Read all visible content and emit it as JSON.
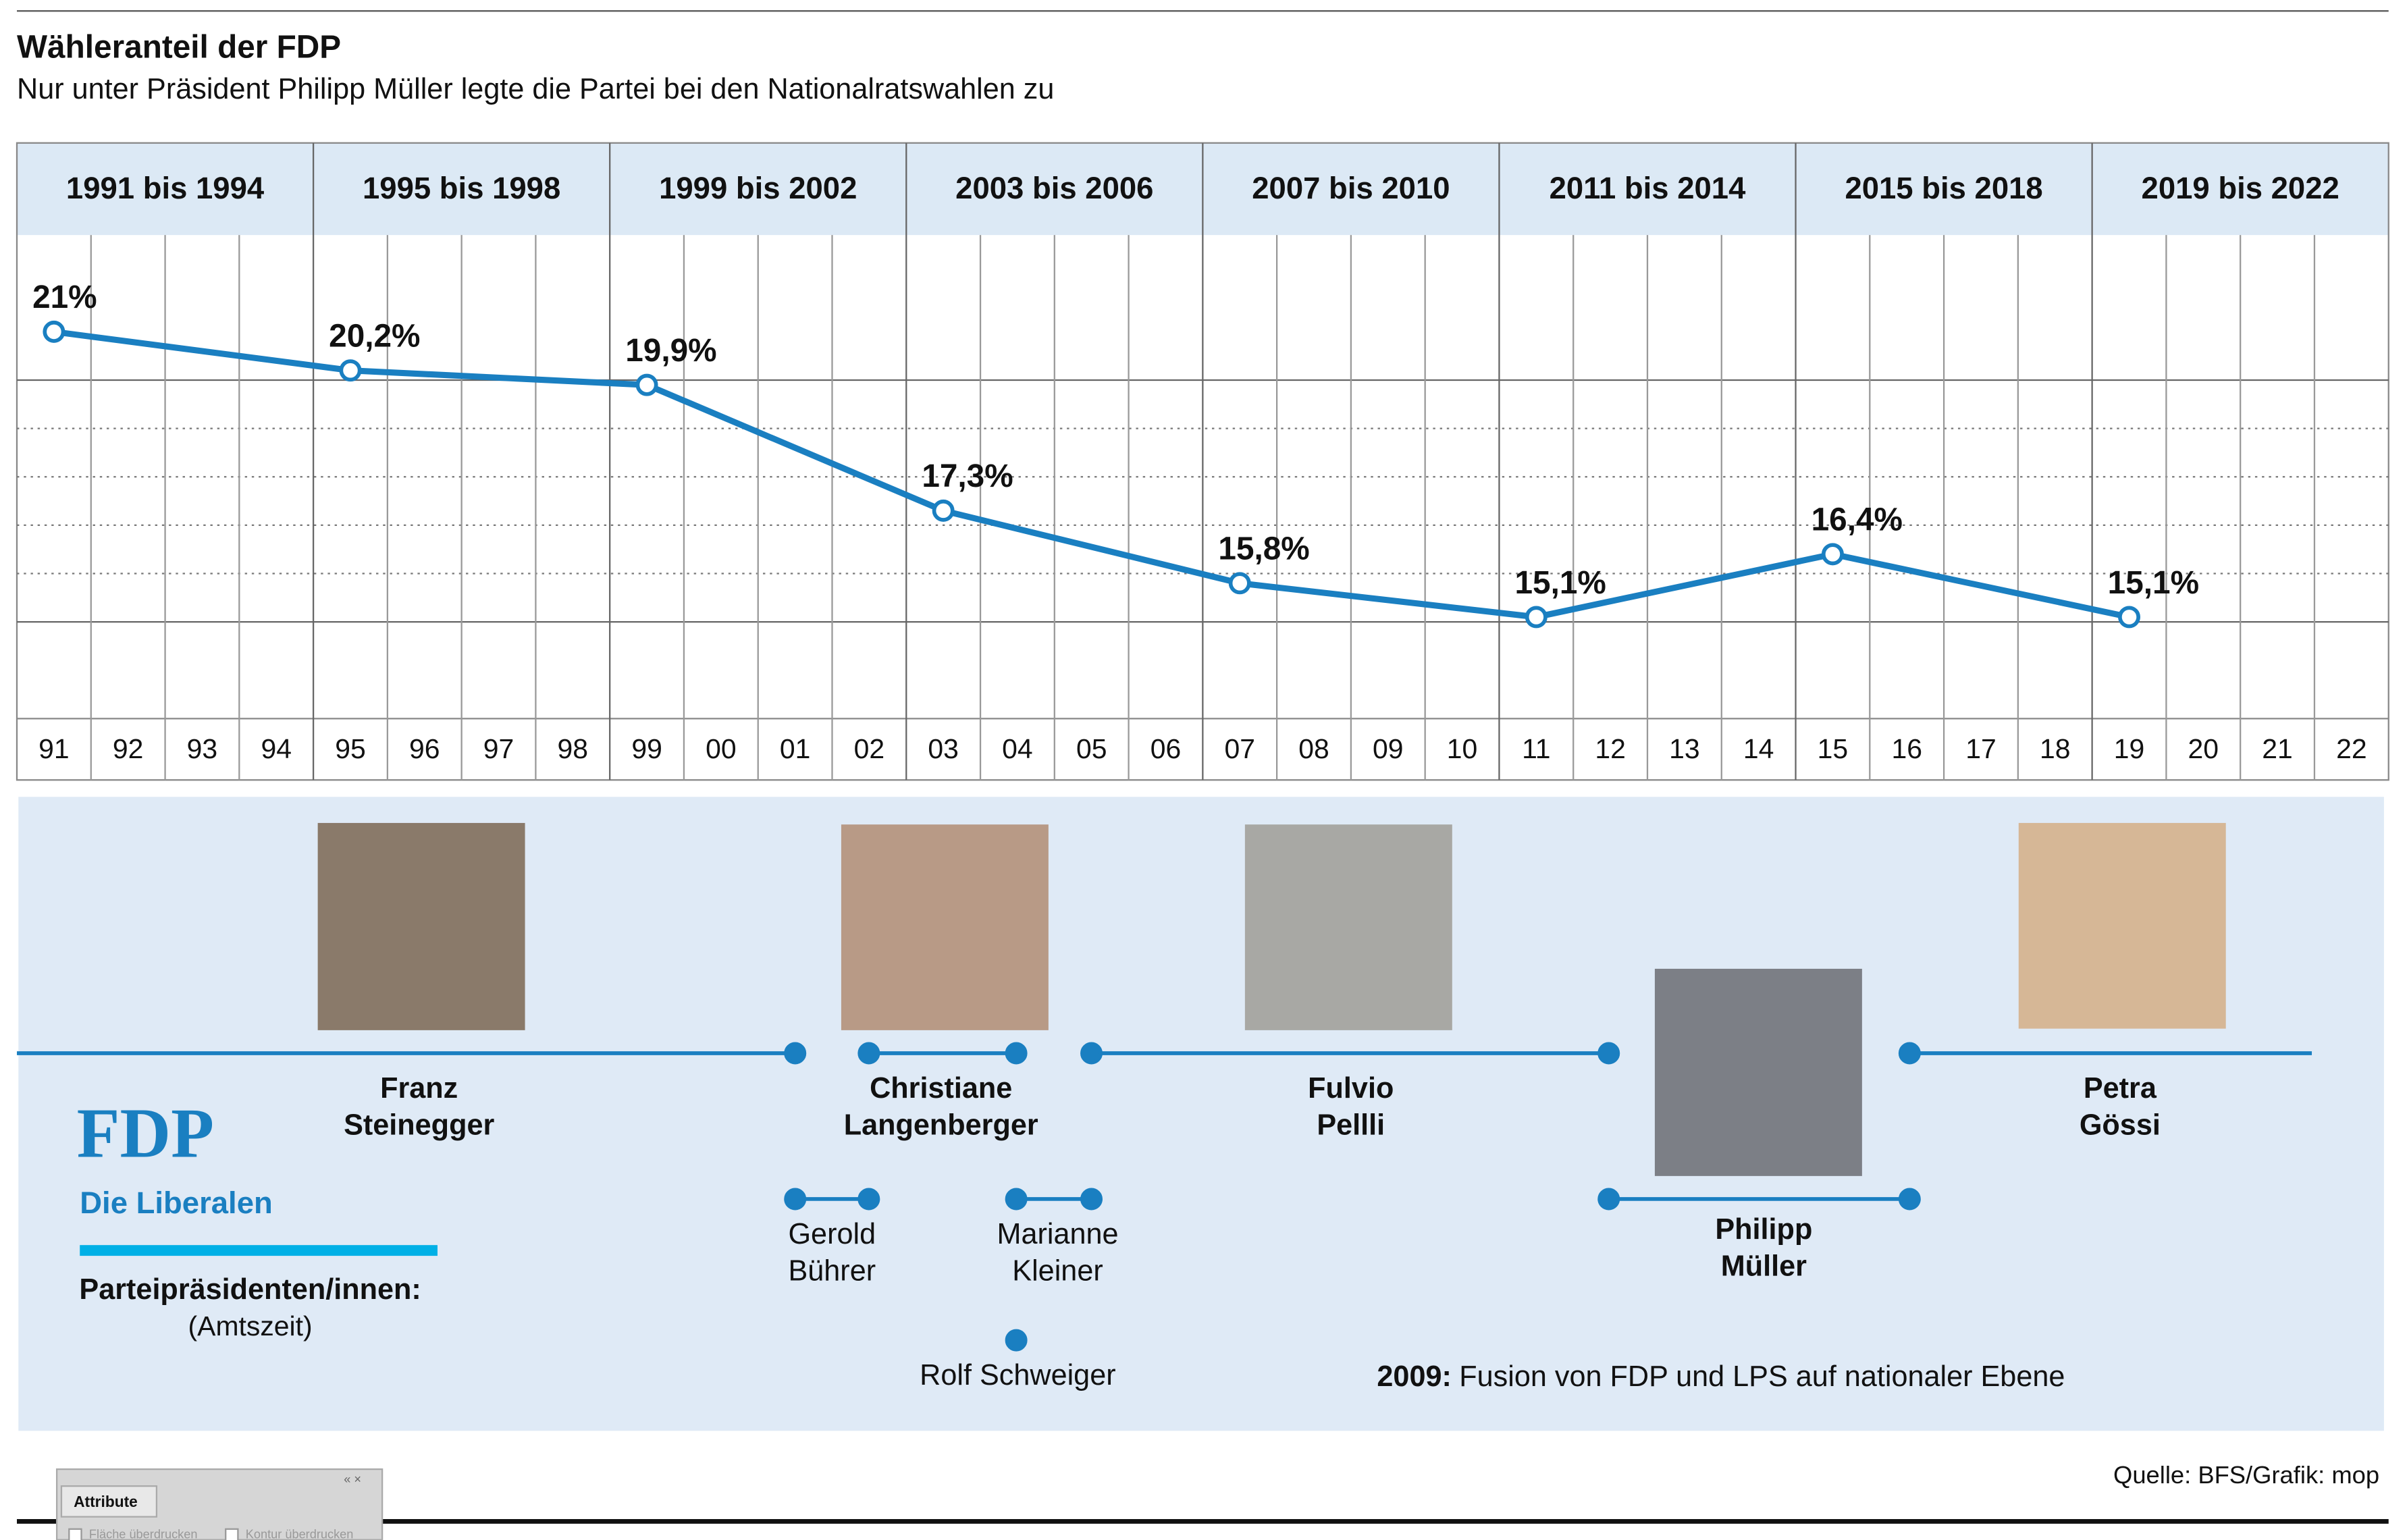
{
  "header": {
    "title": "Wähleranteil der FDP",
    "subtitle": "Nur unter Präsident Philipp Müller legte die Partei bei den Nationalratswahlen zu"
  },
  "chart_data": {
    "type": "line",
    "periods": [
      "1991 bis 1994",
      "1995 bis 1998",
      "1999 bis 2002",
      "2003 bis 2006",
      "2007 bis 2010",
      "2011 bis 2014",
      "2015 bis 2018",
      "2019 bis 2022"
    ],
    "x": [
      1991,
      1995,
      1999,
      2003,
      2007,
      2011,
      2015,
      2019
    ],
    "values": [
      21,
      20.2,
      19.9,
      17.3,
      15.8,
      15.1,
      16.4,
      15.1
    ],
    "value_labels": [
      "21%",
      "20,2%",
      "19,9%",
      "17,3%",
      "15,8%",
      "15,1%",
      "16,4%",
      "15,1%"
    ],
    "color": "#1a7fc1",
    "xlim": [
      1990.5,
      2022.5
    ],
    "xticks": [
      {
        "value": 1991,
        "label": "91"
      },
      {
        "value": 1992,
        "label": "92"
      },
      {
        "value": 1993,
        "label": "93"
      },
      {
        "value": 1994,
        "label": "94"
      },
      {
        "value": 1995,
        "label": "95"
      },
      {
        "value": 1996,
        "label": "96"
      },
      {
        "value": 1997,
        "label": "97"
      },
      {
        "value": 1998,
        "label": "98"
      },
      {
        "value": 1999,
        "label": "99"
      },
      {
        "value": 2000,
        "label": "00"
      },
      {
        "value": 2001,
        "label": "01"
      },
      {
        "value": 2002,
        "label": "02"
      },
      {
        "value": 2003,
        "label": "03"
      },
      {
        "value": 2004,
        "label": "04"
      },
      {
        "value": 2005,
        "label": "05"
      },
      {
        "value": 2006,
        "label": "06"
      },
      {
        "value": 2007,
        "label": "07"
      },
      {
        "value": 2008,
        "label": "08"
      },
      {
        "value": 2009,
        "label": "09"
      },
      {
        "value": 2010,
        "label": "10"
      },
      {
        "value": 2011,
        "label": "11"
      },
      {
        "value": 2012,
        "label": "12"
      },
      {
        "value": 2013,
        "label": "13"
      },
      {
        "value": 2014,
        "label": "14"
      },
      {
        "value": 2015,
        "label": "15"
      },
      {
        "value": 2016,
        "label": "16"
      },
      {
        "value": 2017,
        "label": "17"
      },
      {
        "value": 2018,
        "label": "18"
      },
      {
        "value": 2019,
        "label": "19"
      },
      {
        "value": 2020,
        "label": "20"
      },
      {
        "value": 2021,
        "label": "21"
      },
      {
        "value": 2022,
        "label": "22"
      }
    ],
    "ylim": [
      13,
      23
    ],
    "yticks": [
      15,
      16,
      17,
      18,
      19,
      20
    ],
    "grid": true
  },
  "logo": {
    "name": "FDP",
    "tagline": "Die Liberalen"
  },
  "legend": {
    "heading": "Parteipräsidenten/innen:",
    "sub": "(Amtszeit)"
  },
  "presidents": [
    {
      "lines": [
        "Franz",
        "Steinegger"
      ]
    },
    {
      "lines": [
        "Christiane",
        "Langenberger"
      ]
    },
    {
      "lines": [
        "Fulvio",
        "Pellli"
      ]
    },
    {
      "lines": [
        "Petra",
        "Gössi"
      ]
    },
    {
      "lines": [
        "Philipp",
        "Müller"
      ]
    },
    {
      "lines": [
        "Gerold",
        "Bührer"
      ]
    },
    {
      "lines": [
        "Marianne",
        "Kleiner"
      ]
    },
    {
      "lines": [
        "Rolf Schweiger"
      ]
    }
  ],
  "note": {
    "year": "2009:",
    "text": "Fusion von FDP und LPS auf nationaler Ebene"
  },
  "source": "Quelle: BFS/Grafik: mop",
  "overlay": {
    "tab": "Attribute",
    "options": [
      "Fläche überdrucken",
      "Kontur überdrucken"
    ]
  }
}
